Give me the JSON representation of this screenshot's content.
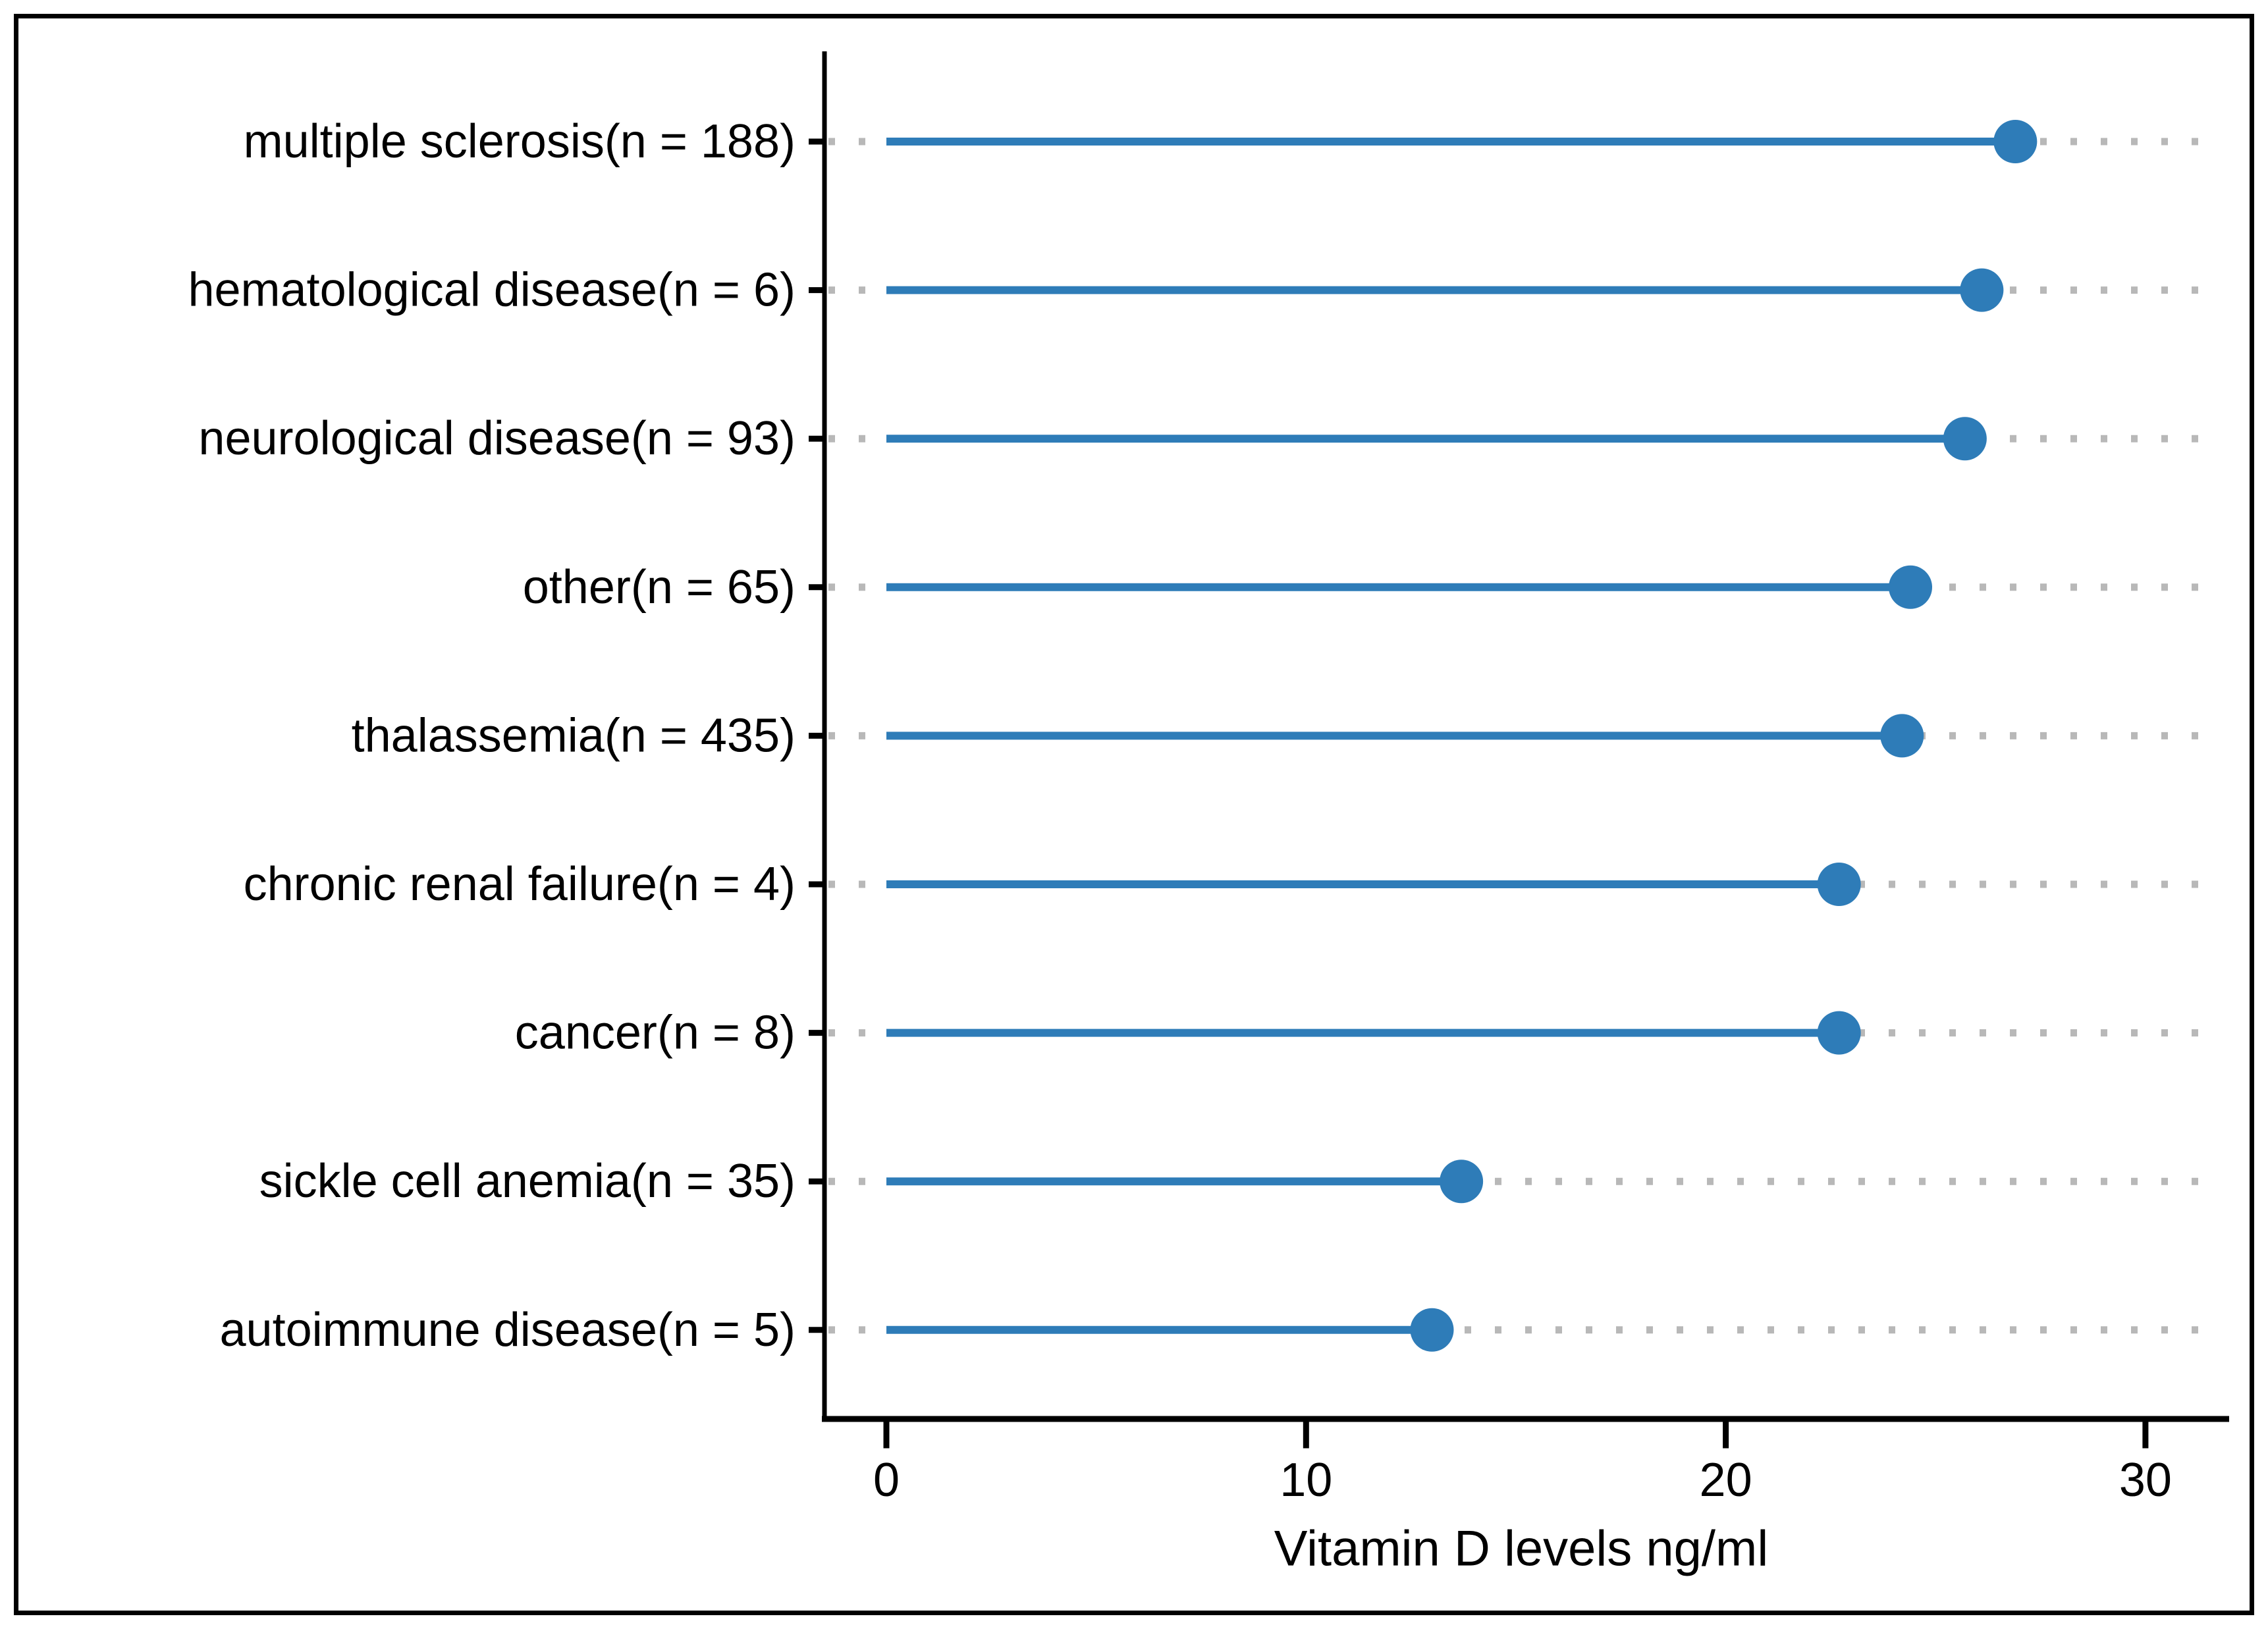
{
  "figure": {
    "background": "#ffffff",
    "border_color": "#000000"
  },
  "chart_data": {
    "type": "bar",
    "variant": "lollipop",
    "orientation": "horizontal",
    "title": "",
    "xlabel": "Vitamin D levels ng/ml",
    "ylabel": "",
    "categories": [
      "multiple sclerosis(n = 188)",
      "hematological disease(n = 6)",
      "neurological disease(n = 93)",
      "other(n = 65)",
      "thalassemia(n = 435)",
      "chronic renal failure(n = 4)",
      "cancer(n = 8)",
      "sickle cell anemia(n = 35)",
      "autoimmune disease(n = 5)"
    ],
    "values": [
      26.9,
      26.1,
      25.7,
      24.4,
      24.2,
      22.7,
      22.7,
      13.7,
      13.0
    ],
    "xlim": [
      0,
      31.6
    ],
    "xticks": [
      0,
      10,
      20,
      30
    ],
    "grid": "horizontal-dotted",
    "legend": "none",
    "colors": {
      "lollipop": "#2e7cb8",
      "grid_dots": "#b8b8b8",
      "axis": "#000000",
      "text": "#000000"
    }
  }
}
